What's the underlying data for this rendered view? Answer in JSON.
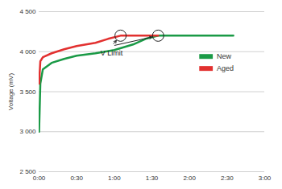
{
  "chart_data": {
    "type": "line",
    "y_label": "Voltage (mV)",
    "xlim": [
      0,
      180
    ],
    "xticks": [
      {
        "value": 0,
        "label": "0:00"
      },
      {
        "value": 30,
        "label": "0:30"
      },
      {
        "value": 60,
        "label": "1:00"
      },
      {
        "value": 90,
        "label": "1:30"
      },
      {
        "value": 120,
        "label": "2:00"
      },
      {
        "value": 150,
        "label": "2:30"
      },
      {
        "value": 180,
        "label": "3:00"
      }
    ],
    "ylim": [
      2500,
      4500
    ],
    "yticks": [
      {
        "value": 2500,
        "label": "2 500"
      },
      {
        "value": 3000,
        "label": "3 000"
      },
      {
        "value": 3500,
        "label": "3 500"
      },
      {
        "value": 4000,
        "label": "4 000"
      },
      {
        "value": 4500,
        "label": "4 500"
      }
    ],
    "grid": "y",
    "legend": "upper right",
    "series": [
      {
        "name": "New",
        "color": "#1a9a46",
        "x": [
          0,
          1,
          3,
          10,
          20,
          30,
          45,
          60,
          75,
          85,
          95,
          110,
          130,
          155
        ],
        "values": [
          3000,
          3600,
          3780,
          3860,
          3910,
          3950,
          3980,
          4020,
          4090,
          4160,
          4200,
          4200,
          4200,
          4200
        ]
      },
      {
        "name": "Aged",
        "color": "#e2302f",
        "x": [
          0,
          1,
          3,
          10,
          20,
          30,
          45,
          55,
          65,
          80,
          95
        ],
        "values": [
          3600,
          3880,
          3930,
          3980,
          4030,
          4070,
          4110,
          4160,
          4200,
          4200,
          4200
        ]
      }
    ],
    "annotations": [
      {
        "text": "V Limit",
        "targets": [
          [
            65,
            4200
          ],
          [
            95,
            4200
          ]
        ]
      }
    ]
  }
}
